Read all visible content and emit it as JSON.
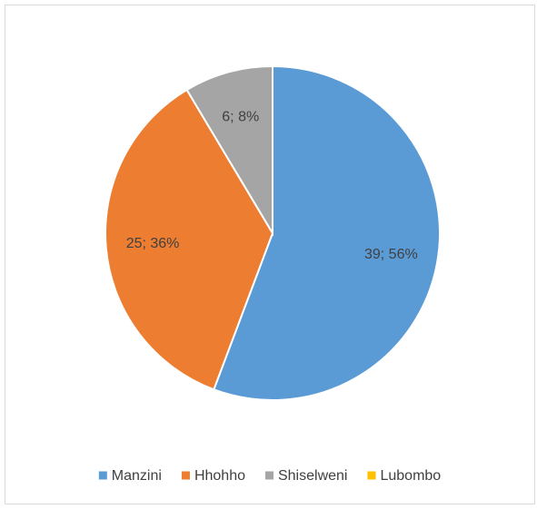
{
  "chart_data": {
    "type": "pie",
    "categories": [
      "Manzini",
      "Hhohho",
      "Shiselweni",
      "Lubombo"
    ],
    "values": [
      39,
      25,
      6,
      0
    ],
    "value_labels": [
      "39; 56%",
      "25; 36%",
      "6; 8%",
      null
    ],
    "colors": [
      "#5b9bd5",
      "#ed7d31",
      "#a5a5a5",
      "#ffc000"
    ],
    "legend": "bottom"
  }
}
